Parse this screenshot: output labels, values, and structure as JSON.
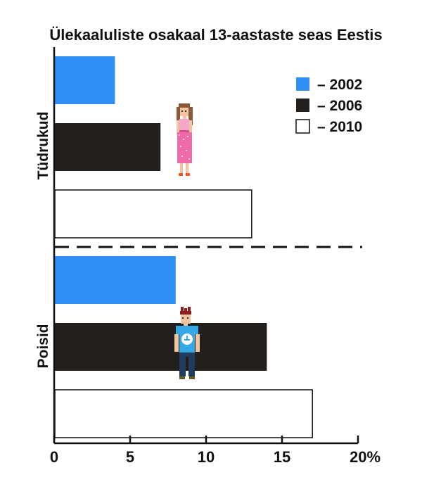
{
  "chart_data": {
    "type": "bar",
    "orientation": "horizontal",
    "title": "Ülekaaluliste osakaal 13-aastaste seas Eestis",
    "categories": [
      "Tüdrukud",
      "Poisid"
    ],
    "series": [
      {
        "name": "– 2002",
        "color": "#2f8ff5",
        "values": [
          4,
          8
        ]
      },
      {
        "name": "– 2006",
        "color": "#231f1c",
        "values": [
          7,
          14
        ]
      },
      {
        "name": "– 2010",
        "color": "#ffffff",
        "values": [
          13,
          17
        ]
      }
    ],
    "xlim": [
      0,
      20
    ],
    "ticks": [
      0,
      5,
      10,
      15,
      20
    ],
    "tick_labels": [
      "0",
      "5",
      "10",
      "15",
      "20%"
    ],
    "legend_position": "top-right",
    "grid": false,
    "separator": "dashed",
    "icons": [
      "girl-figure-icon",
      "boy-figure-icon"
    ]
  }
}
